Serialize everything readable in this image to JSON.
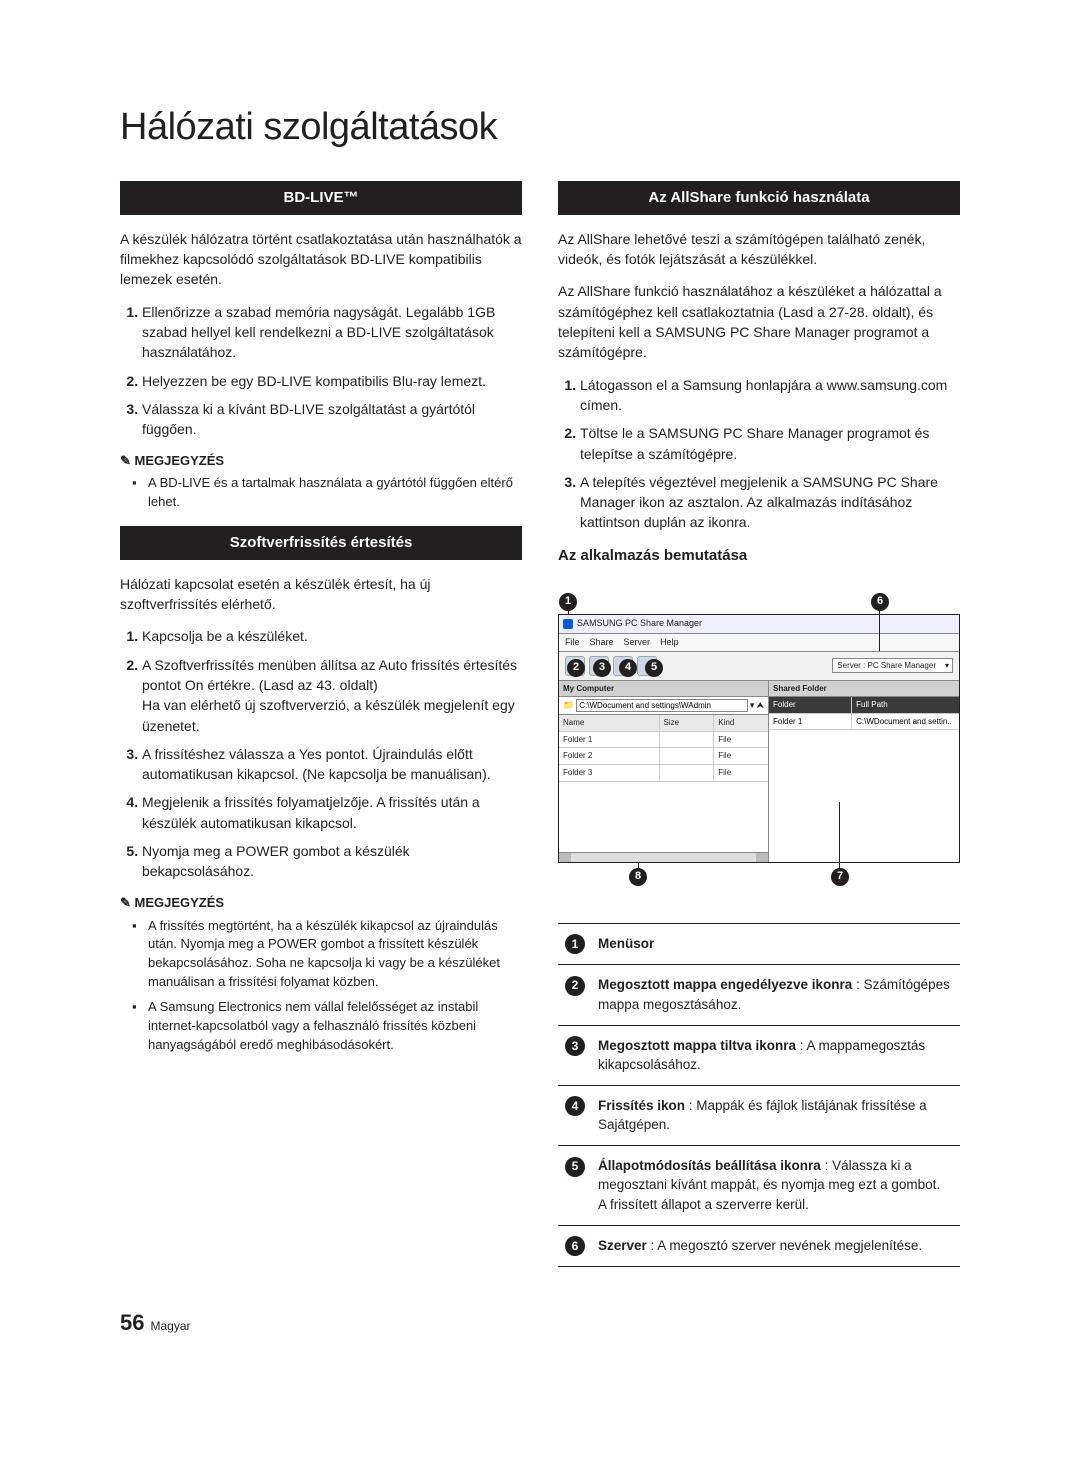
{
  "page_title": "Hálózati szolgáltatások",
  "left": {
    "bd_live": {
      "header": "BD-LIVE™",
      "intro": "A készülék hálózatra történt csatlakoztatása után használhatók a filmekhez kapcsolódó szolgáltatások BD-LIVE kompatibilis lemezek esetén.",
      "items": [
        "Ellenőrizze a szabad memória nagyságát. Legalább 1GB szabad hellyel kell rendelkezni a BD-LIVE szolgáltatások használatához.",
        "Helyezzen be egy BD-LIVE kompatibilis Blu-ray lemezt.",
        "Válassza ki a kívánt BD-LIVE szolgáltatást a gyártótól függően."
      ],
      "note_label": "MEGJEGYZÉS",
      "note": "A BD-LIVE és a tartalmak használata a gyártótól függően eltérő lehet."
    },
    "sw": {
      "header": "Szoftverfrissítés értesítés",
      "intro": "Hálózati kapcsolat esetén a készülék értesít, ha új szoftverfrissítés elérhető.",
      "items": [
        "Kapcsolja be a készüléket.",
        "A Szoftverfrissítés menüben állítsa az Auto frissítés értesítés pontot On értékre. (Lasd az 43. oldalt)\nHa van elérhető új szoftververzió, a készülék megjelenít egy üzenetet.",
        "A frissítéshez válassza a Yes pontot. Újraindulás előtt automatikusan kikapcsol. (Ne kapcsolja be manuálisan).",
        "Megjelenik a frissítés folyamatjelzője. A frissítés után a készülék automatikusan kikapcsol.",
        "Nyomja meg a POWER gombot a készülék bekapcsolásához."
      ],
      "note_label": "MEGJEGYZÉS",
      "notes": [
        "A frissítés megtörtént, ha a készülék kikapcsol az újraindulás után. Nyomja meg a POWER gombot a frissített készülék bekapcsolásához. Soha ne kapcsolja ki vagy be a készüléket manuálisan a frissítési folyamat közben.",
        "A Samsung Electronics nem vállal felelősséget az instabil internet-kapcsolatból vagy a felhasználó frissítés közbeni hanyagságából eredő meghibásodásokért."
      ]
    }
  },
  "right": {
    "allshare": {
      "header": "Az AllShare funkció használata",
      "p1": "Az AllShare lehetővé teszi a számítógépen található zenék, videók, és fotók lejátszását a készülékkel.",
      "p2": "Az AllShare funkció használatához a készüléket a hálózattal a számítógéphez kell csatlakoztatnia (Lasd a 27-28. oldalt), és telepíteni kell a SAMSUNG PC Share Manager programot a számítógépre.",
      "items": [
        "Látogasson el a Samsung honlapjára a www.samsung.com címen.",
        "Töltse le a SAMSUNG PC Share Manager programot és telepítse a számítógépre.",
        "A telepítés végeztével megjelenik a SAMSUNG PC Share Manager ikon az asztalon. Az alkalmazás indításához kattintson duplán az ikonra."
      ],
      "subheading": "Az alkalmazás bemutatása"
    },
    "shot": {
      "title": "SAMSUNG PC Share Manager",
      "menu": [
        "File",
        "Share",
        "Server",
        "Help"
      ],
      "server_label": "Server : PC Share Manager",
      "left_head": "My Computer",
      "right_head": "Shared Folder",
      "path": "C:\\WDocument and settings\\WAdmin",
      "cols_left": [
        "Name",
        "Size",
        "Kind"
      ],
      "cols_right": [
        "Folder",
        "Full Path"
      ],
      "rows_left": [
        [
          "Folder 1",
          "",
          "File"
        ],
        [
          "Folder 2",
          "",
          "File"
        ],
        [
          "Folder 3",
          "",
          "File"
        ]
      ],
      "rows_right": [
        [
          "Folder 1",
          "C:\\WDocument and settin.."
        ]
      ]
    },
    "callout_labels": {
      "1": "1",
      "2": "2",
      "3": "3",
      "4": "4",
      "5": "5",
      "6": "6",
      "7": "7",
      "8": "8"
    },
    "legend": [
      {
        "n": "1",
        "html": "<b>Menüsor</b>"
      },
      {
        "n": "2",
        "html": "<b>Megosztott mappa engedélyezve ikonra</b> : Számítógépes mappa megosztásához."
      },
      {
        "n": "3",
        "html": "<b>Megosztott mappa tiltva ikonra</b> : A mappamegosztás kikapcsolásához."
      },
      {
        "n": "4",
        "html": "<b>Frissítés ikon</b> : Mappák és fájlok listájának frissítése a Sajátgépen."
      },
      {
        "n": "5",
        "html": "<b>Állapotmódosítás beállítása ikonra</b> : Válassza ki a megosztani kívánt mappát, és nyomja meg ezt a gombot.<br>A frissített állapot a szerverre kerül."
      },
      {
        "n": "6",
        "html": "<b>Szerver</b> : A megosztó szerver nevének megjelenítése."
      }
    ]
  },
  "footer": {
    "page": "56",
    "lang": "Magyar"
  }
}
